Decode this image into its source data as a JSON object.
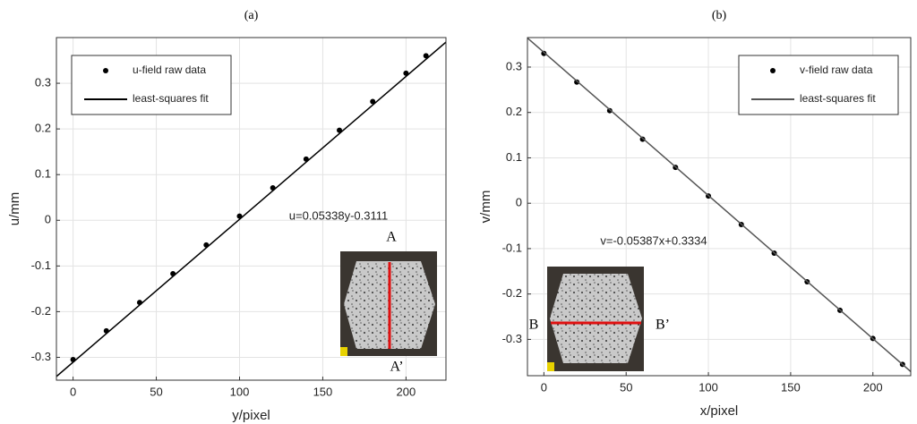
{
  "chart_data": [
    {
      "type": "line",
      "title": "(a)",
      "x_label": "y/pixel",
      "y_label": "u/mm",
      "xlim": [
        -10,
        224
      ],
      "ylim": [
        -0.35,
        0.4
      ],
      "xticks": [
        0,
        50,
        100,
        150,
        200
      ],
      "yticks": [
        -0.3,
        -0.2,
        -0.1,
        0,
        0.1,
        0.2,
        0.3
      ],
      "grid": true,
      "legend": "upper left",
      "series": [
        {
          "name": "u-field raw data",
          "style": "markers",
          "color": "#000000",
          "x": [
            0,
            20,
            40,
            60,
            80,
            100,
            120,
            140,
            160,
            180,
            200,
            212
          ],
          "values": [
            -0.305,
            -0.242,
            -0.18,
            -0.117,
            -0.054,
            0.009,
            0.071,
            0.134,
            0.197,
            0.26,
            0.322,
            0.36
          ]
        },
        {
          "name": "least-squares fit",
          "style": "line",
          "color": "#000000",
          "x": [
            -10,
            224
          ],
          "values": [
            -0.342,
            0.39
          ]
        }
      ],
      "annotation": "u=0.05338y-0.3111",
      "inset_labels": [
        "A",
        "A’"
      ]
    },
    {
      "type": "line",
      "title": "(b)",
      "x_label": "x/pixel",
      "y_label": "v/mm",
      "xlim": [
        -10,
        223
      ],
      "ylim": [
        -0.38,
        0.365
      ],
      "xticks": [
        0,
        50,
        100,
        150,
        200
      ],
      "yticks": [
        -0.3,
        -0.2,
        -0.1,
        0,
        0.1,
        0.2,
        0.3
      ],
      "grid": true,
      "legend": "upper right",
      "series": [
        {
          "name": "v-field raw data",
          "style": "markers",
          "color": "#000000",
          "x": [
            0,
            20,
            40,
            60,
            80,
            100,
            120,
            140,
            160,
            180,
            200,
            218
          ],
          "values": [
            0.33,
            0.267,
            0.204,
            0.141,
            0.079,
            0.016,
            -0.047,
            -0.11,
            -0.173,
            -0.236,
            -0.298,
            -0.355
          ]
        },
        {
          "name": "least-squares fit",
          "style": "line",
          "color": "#555555",
          "x": [
            -10,
            223
          ],
          "values": [
            0.364,
            -0.371
          ]
        }
      ],
      "annotation": "v=-0.05387x+0.3334",
      "inset_labels": [
        "B",
        "B’"
      ]
    }
  ]
}
